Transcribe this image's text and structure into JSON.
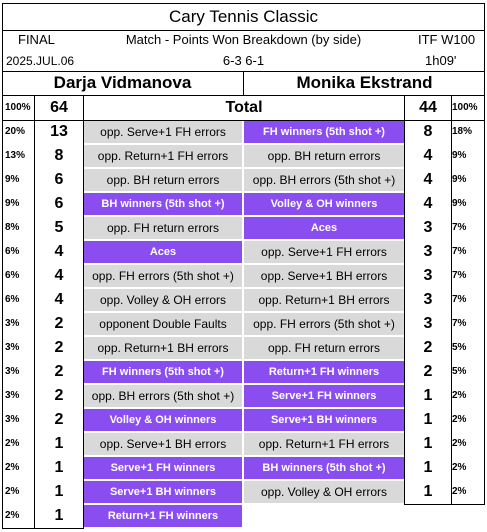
{
  "header": {
    "title": "Cary Tennis Classic",
    "round": "FINAL",
    "subtitle": "Match - Points Won Breakdown (by side)",
    "level": "ITF W100",
    "date": "2025.JUL.06",
    "score": "6-3  6-1",
    "duration": "1h09'"
  },
  "players": {
    "left": "Darja Vidmanova",
    "right": "Monika Ekstrand"
  },
  "total": {
    "label": "Total",
    "left_pct": "100%",
    "left_count": "64",
    "right_count": "44",
    "right_pct": "100%"
  },
  "colors": {
    "purple": "#8a4df0",
    "gray": "#d9d9d9"
  },
  "rows": [
    {
      "lp": "20%",
      "lc": "13",
      "lcat": "opp. Serve+1 FH errors",
      "ls": "gray",
      "rcat": "FH winners (5th shot +)",
      "rs": "purple",
      "rc": "8",
      "rp": "18%"
    },
    {
      "lp": "13%",
      "lc": "8",
      "lcat": "opp. Return+1 FH errors",
      "ls": "gray",
      "rcat": "opp. BH return errors",
      "rs": "gray",
      "rc": "4",
      "rp": "9%"
    },
    {
      "lp": "9%",
      "lc": "6",
      "lcat": "opp. BH return errors",
      "ls": "gray",
      "rcat": "opp. BH errors (5th shot +)",
      "rs": "gray",
      "rc": "4",
      "rp": "9%"
    },
    {
      "lp": "9%",
      "lc": "6",
      "lcat": "BH winners (5th shot +)",
      "ls": "purple",
      "rcat": "Volley & OH winners",
      "rs": "purple",
      "rc": "4",
      "rp": "9%"
    },
    {
      "lp": "8%",
      "lc": "5",
      "lcat": "opp. FH return errors",
      "ls": "gray",
      "rcat": "Aces",
      "rs": "purple",
      "rc": "3",
      "rp": "7%"
    },
    {
      "lp": "6%",
      "lc": "4",
      "lcat": "Aces",
      "ls": "purple",
      "rcat": "opp. Serve+1 FH errors",
      "rs": "gray",
      "rc": "3",
      "rp": "7%"
    },
    {
      "lp": "6%",
      "lc": "4",
      "lcat": "opp. FH errors (5th shot +)",
      "ls": "gray",
      "rcat": "opp. Serve+1 BH errors",
      "rs": "gray",
      "rc": "3",
      "rp": "7%"
    },
    {
      "lp": "6%",
      "lc": "4",
      "lcat": "opp. Volley & OH errors",
      "ls": "gray",
      "rcat": "opp. Return+1 BH errors",
      "rs": "gray",
      "rc": "3",
      "rp": "7%"
    },
    {
      "lp": "3%",
      "lc": "2",
      "lcat": "opponent Double Faults",
      "ls": "gray",
      "rcat": "opp. FH errors (5th shot +)",
      "rs": "gray",
      "rc": "3",
      "rp": "7%"
    },
    {
      "lp": "3%",
      "lc": "2",
      "lcat": "opp. Return+1 BH errors",
      "ls": "gray",
      "rcat": "opp. FH return errors",
      "rs": "gray",
      "rc": "2",
      "rp": "5%"
    },
    {
      "lp": "3%",
      "lc": "2",
      "lcat": "FH winners (5th shot +)",
      "ls": "purple",
      "rcat": "Return+1 FH winners",
      "rs": "purple",
      "rc": "2",
      "rp": "5%"
    },
    {
      "lp": "3%",
      "lc": "2",
      "lcat": "opp. BH errors (5th shot +)",
      "ls": "gray",
      "rcat": "Serve+1 FH winners",
      "rs": "purple",
      "rc": "1",
      "rp": "2%"
    },
    {
      "lp": "3%",
      "lc": "2",
      "lcat": "Volley & OH winners",
      "ls": "purple",
      "rcat": "Serve+1 BH winners",
      "rs": "purple",
      "rc": "1",
      "rp": "2%"
    },
    {
      "lp": "2%",
      "lc": "1",
      "lcat": "opp. Serve+1 BH errors",
      "ls": "gray",
      "rcat": "opp. Return+1 FH errors",
      "rs": "gray",
      "rc": "1",
      "rp": "2%"
    },
    {
      "lp": "2%",
      "lc": "1",
      "lcat": "Serve+1 FH winners",
      "ls": "purple",
      "rcat": "BH winners (5th shot +)",
      "rs": "purple",
      "rc": "1",
      "rp": "2%"
    },
    {
      "lp": "2%",
      "lc": "1",
      "lcat": "Serve+1 BH winners",
      "ls": "purple",
      "rcat": "opp. Volley & OH errors",
      "rs": "gray",
      "rc": "1",
      "rp": "2%"
    },
    {
      "lp": "2%",
      "lc": "1",
      "lcat": "Return+1 FH winners",
      "ls": "purple",
      "rcat": "",
      "rs": "none",
      "rc": "",
      "rp": ""
    }
  ]
}
